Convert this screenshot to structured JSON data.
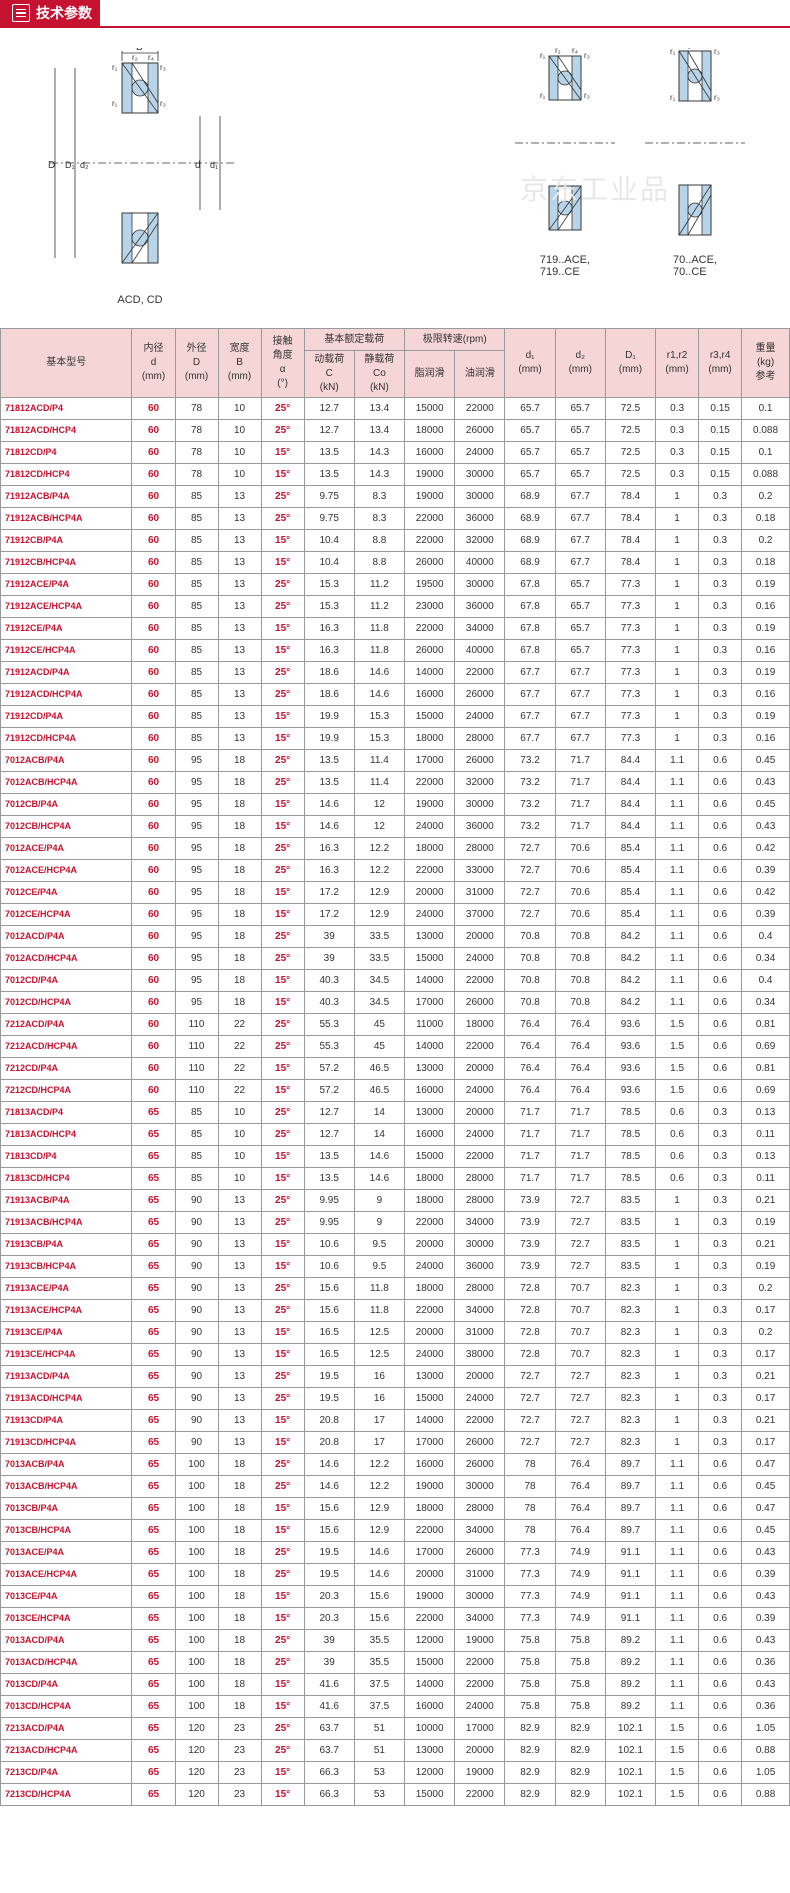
{
  "header": {
    "title": "技术参数"
  },
  "watermark": "京东工业品",
  "diagram_labels": {
    "left": "ACD, CD",
    "mid": "719..ACE,\n719..CE",
    "right": "70..ACE,\n70..CE"
  },
  "diagram_dims": {
    "B": "B",
    "D": "D",
    "D1": "D₁",
    "d": "d",
    "d1": "d₁",
    "d2": "d₂",
    "r1": "r₁",
    "r2": "r₂",
    "r3": "r₃",
    "r4": "r₄"
  },
  "colors": {
    "bearing_fill": "#b8d4e8",
    "bearing_stroke": "#2a5a8a",
    "header_red": "#c41230",
    "th_bg": "#f5d5d5"
  },
  "columns": {
    "model": "基本型号",
    "d": "内径\nd\n(mm)",
    "D": "外径\nD\n(mm)",
    "B": "宽度\nB\n(mm)",
    "angle": "接触\n角度\nα\n(°)",
    "load": "基本额定载荷",
    "load_c": "动载荷\nC\n(kN)",
    "load_co": "静载荷\nCo\n(kN)",
    "speed": "极限转速(rpm)",
    "speed_g": "脂润滑",
    "speed_o": "油润滑",
    "d1": "d₁\n(mm)",
    "d2": "d₂\n(mm)",
    "D1": "D₁\n(mm)",
    "r12": "r1,r2\n(mm)",
    "r34": "r3,r4\n(mm)",
    "w": "重量\n(kg)\n参考"
  },
  "rows": [
    [
      "71812ACD/P4",
      "60",
      "78",
      "10",
      "25°",
      "12.7",
      "13.4",
      "15000",
      "22000",
      "65.7",
      "65.7",
      "72.5",
      "0.3",
      "0.15",
      "0.1"
    ],
    [
      "71812ACD/HCP4",
      "60",
      "78",
      "10",
      "25°",
      "12.7",
      "13.4",
      "18000",
      "26000",
      "65.7",
      "65.7",
      "72.5",
      "0.3",
      "0.15",
      "0.088"
    ],
    [
      "71812CD/P4",
      "60",
      "78",
      "10",
      "15°",
      "13.5",
      "14.3",
      "16000",
      "24000",
      "65.7",
      "65.7",
      "72.5",
      "0.3",
      "0.15",
      "0.1"
    ],
    [
      "71812CD/HCP4",
      "60",
      "78",
      "10",
      "15°",
      "13.5",
      "14.3",
      "19000",
      "30000",
      "65.7",
      "65.7",
      "72.5",
      "0.3",
      "0.15",
      "0.088"
    ],
    [
      "71912ACB/P4A",
      "60",
      "85",
      "13",
      "25°",
      "9.75",
      "8.3",
      "19000",
      "30000",
      "68.9",
      "67.7",
      "78.4",
      "1",
      "0.3",
      "0.2"
    ],
    [
      "71912ACB/HCP4A",
      "60",
      "85",
      "13",
      "25°",
      "9.75",
      "8.3",
      "22000",
      "36000",
      "68.9",
      "67.7",
      "78.4",
      "1",
      "0.3",
      "0.18"
    ],
    [
      "71912CB/P4A",
      "60",
      "85",
      "13",
      "15°",
      "10.4",
      "8.8",
      "22000",
      "32000",
      "68.9",
      "67.7",
      "78.4",
      "1",
      "0.3",
      "0.2"
    ],
    [
      "71912CB/HCP4A",
      "60",
      "85",
      "13",
      "15°",
      "10.4",
      "8.8",
      "26000",
      "40000",
      "68.9",
      "67.7",
      "78.4",
      "1",
      "0.3",
      "0.18"
    ],
    [
      "71912ACE/P4A",
      "60",
      "85",
      "13",
      "25°",
      "15.3",
      "11.2",
      "19500",
      "30000",
      "67.8",
      "65.7",
      "77.3",
      "1",
      "0.3",
      "0.19"
    ],
    [
      "71912ACE/HCP4A",
      "60",
      "85",
      "13",
      "25°",
      "15.3",
      "11.2",
      "23000",
      "36000",
      "67.8",
      "65.7",
      "77.3",
      "1",
      "0.3",
      "0.16"
    ],
    [
      "71912CE/P4A",
      "60",
      "85",
      "13",
      "15°",
      "16.3",
      "11.8",
      "22000",
      "34000",
      "67.8",
      "65.7",
      "77.3",
      "1",
      "0.3",
      "0.19"
    ],
    [
      "71912CE/HCP4A",
      "60",
      "85",
      "13",
      "15°",
      "16.3",
      "11.8",
      "26000",
      "40000",
      "67.8",
      "65.7",
      "77.3",
      "1",
      "0.3",
      "0.16"
    ],
    [
      "71912ACD/P4A",
      "60",
      "85",
      "13",
      "25°",
      "18.6",
      "14.6",
      "14000",
      "22000",
      "67.7",
      "67.7",
      "77.3",
      "1",
      "0.3",
      "0.19"
    ],
    [
      "71912ACD/HCP4A",
      "60",
      "85",
      "13",
      "25°",
      "18.6",
      "14.6",
      "16000",
      "26000",
      "67.7",
      "67.7",
      "77.3",
      "1",
      "0.3",
      "0.16"
    ],
    [
      "71912CD/P4A",
      "60",
      "85",
      "13",
      "15°",
      "19.9",
      "15.3",
      "15000",
      "24000",
      "67.7",
      "67.7",
      "77.3",
      "1",
      "0.3",
      "0.19"
    ],
    [
      "71912CD/HCP4A",
      "60",
      "85",
      "13",
      "15°",
      "19.9",
      "15.3",
      "18000",
      "28000",
      "67.7",
      "67.7",
      "77.3",
      "1",
      "0.3",
      "0.16"
    ],
    [
      "7012ACB/P4A",
      "60",
      "95",
      "18",
      "25°",
      "13.5",
      "11.4",
      "17000",
      "26000",
      "73.2",
      "71.7",
      "84.4",
      "1.1",
      "0.6",
      "0.45"
    ],
    [
      "7012ACB/HCP4A",
      "60",
      "95",
      "18",
      "25°",
      "13.5",
      "11.4",
      "22000",
      "32000",
      "73.2",
      "71.7",
      "84.4",
      "1.1",
      "0.6",
      "0.43"
    ],
    [
      "7012CB/P4A",
      "60",
      "95",
      "18",
      "15°",
      "14.6",
      "12",
      "19000",
      "30000",
      "73.2",
      "71.7",
      "84.4",
      "1.1",
      "0.6",
      "0.45"
    ],
    [
      "7012CB/HCP4A",
      "60",
      "95",
      "18",
      "15°",
      "14.6",
      "12",
      "24000",
      "36000",
      "73.2",
      "71.7",
      "84.4",
      "1.1",
      "0.6",
      "0.43"
    ],
    [
      "7012ACE/P4A",
      "60",
      "95",
      "18",
      "25°",
      "16.3",
      "12.2",
      "18000",
      "28000",
      "72.7",
      "70.6",
      "85.4",
      "1.1",
      "0.6",
      "0.42"
    ],
    [
      "7012ACE/HCP4A",
      "60",
      "95",
      "18",
      "25°",
      "16.3",
      "12.2",
      "22000",
      "33000",
      "72.7",
      "70.6",
      "85.4",
      "1.1",
      "0.6",
      "0.39"
    ],
    [
      "7012CE/P4A",
      "60",
      "95",
      "18",
      "15°",
      "17.2",
      "12.9",
      "20000",
      "31000",
      "72.7",
      "70.6",
      "85.4",
      "1.1",
      "0.6",
      "0.42"
    ],
    [
      "7012CE/HCP4A",
      "60",
      "95",
      "18",
      "15°",
      "17.2",
      "12.9",
      "24000",
      "37000",
      "72.7",
      "70.6",
      "85.4",
      "1.1",
      "0.6",
      "0.39"
    ],
    [
      "7012ACD/P4A",
      "60",
      "95",
      "18",
      "25°",
      "39",
      "33.5",
      "13000",
      "20000",
      "70.8",
      "70.8",
      "84.2",
      "1.1",
      "0.6",
      "0.4"
    ],
    [
      "7012ACD/HCP4A",
      "60",
      "95",
      "18",
      "25°",
      "39",
      "33.5",
      "15000",
      "24000",
      "70.8",
      "70.8",
      "84.2",
      "1.1",
      "0.6",
      "0.34"
    ],
    [
      "7012CD/P4A",
      "60",
      "95",
      "18",
      "15°",
      "40.3",
      "34.5",
      "14000",
      "22000",
      "70.8",
      "70.8",
      "84.2",
      "1.1",
      "0.6",
      "0.4"
    ],
    [
      "7012CD/HCP4A",
      "60",
      "95",
      "18",
      "15°",
      "40.3",
      "34.5",
      "17000",
      "26000",
      "70.8",
      "70.8",
      "84.2",
      "1.1",
      "0.6",
      "0.34"
    ],
    [
      "7212ACD/P4A",
      "60",
      "110",
      "22",
      "25°",
      "55.3",
      "45",
      "11000",
      "18000",
      "76.4",
      "76.4",
      "93.6",
      "1.5",
      "0.6",
      "0.81"
    ],
    [
      "7212ACD/HCP4A",
      "60",
      "110",
      "22",
      "25°",
      "55.3",
      "45",
      "14000",
      "22000",
      "76.4",
      "76.4",
      "93.6",
      "1.5",
      "0.6",
      "0.69"
    ],
    [
      "7212CD/P4A",
      "60",
      "110",
      "22",
      "15°",
      "57.2",
      "46.5",
      "13000",
      "20000",
      "76.4",
      "76.4",
      "93.6",
      "1.5",
      "0.6",
      "0.81"
    ],
    [
      "7212CD/HCP4A",
      "60",
      "110",
      "22",
      "15°",
      "57.2",
      "46.5",
      "16000",
      "24000",
      "76.4",
      "76.4",
      "93.6",
      "1.5",
      "0.6",
      "0.69"
    ],
    [
      "71813ACD/P4",
      "65",
      "85",
      "10",
      "25°",
      "12.7",
      "14",
      "13000",
      "20000",
      "71.7",
      "71.7",
      "78.5",
      "0.6",
      "0.3",
      "0.13"
    ],
    [
      "71813ACD/HCP4",
      "65",
      "85",
      "10",
      "25°",
      "12.7",
      "14",
      "16000",
      "24000",
      "71.7",
      "71.7",
      "78.5",
      "0.6",
      "0.3",
      "0.11"
    ],
    [
      "71813CD/P4",
      "65",
      "85",
      "10",
      "15°",
      "13.5",
      "14.6",
      "15000",
      "22000",
      "71.7",
      "71.7",
      "78.5",
      "0.6",
      "0.3",
      "0.13"
    ],
    [
      "71813CD/HCP4",
      "65",
      "85",
      "10",
      "15°",
      "13.5",
      "14.6",
      "18000",
      "28000",
      "71.7",
      "71.7",
      "78.5",
      "0.6",
      "0.3",
      "0.11"
    ],
    [
      "71913ACB/P4A",
      "65",
      "90",
      "13",
      "25°",
      "9.95",
      "9",
      "18000",
      "28000",
      "73.9",
      "72.7",
      "83.5",
      "1",
      "0.3",
      "0.21"
    ],
    [
      "71913ACB/HCP4A",
      "65",
      "90",
      "13",
      "25°",
      "9.95",
      "9",
      "22000",
      "34000",
      "73.9",
      "72.7",
      "83.5",
      "1",
      "0.3",
      "0.19"
    ],
    [
      "71913CB/P4A",
      "65",
      "90",
      "13",
      "15°",
      "10.6",
      "9.5",
      "20000",
      "30000",
      "73.9",
      "72.7",
      "83.5",
      "1",
      "0.3",
      "0.21"
    ],
    [
      "71913CB/HCP4A",
      "65",
      "90",
      "13",
      "15°",
      "10.6",
      "9.5",
      "24000",
      "36000",
      "73.9",
      "72.7",
      "83.5",
      "1",
      "0.3",
      "0.19"
    ],
    [
      "71913ACE/P4A",
      "65",
      "90",
      "13",
      "25°",
      "15.6",
      "11.8",
      "18000",
      "28000",
      "72.8",
      "70.7",
      "82.3",
      "1",
      "0.3",
      "0.2"
    ],
    [
      "71913ACE/HCP4A",
      "65",
      "90",
      "13",
      "25°",
      "15.6",
      "11.8",
      "22000",
      "34000",
      "72.8",
      "70.7",
      "82.3",
      "1",
      "0.3",
      "0.17"
    ],
    [
      "71913CE/P4A",
      "65",
      "90",
      "13",
      "15°",
      "16.5",
      "12.5",
      "20000",
      "31000",
      "72.8",
      "70.7",
      "82.3",
      "1",
      "0.3",
      "0.2"
    ],
    [
      "71913CE/HCP4A",
      "65",
      "90",
      "13",
      "15°",
      "16.5",
      "12.5",
      "24000",
      "38000",
      "72.8",
      "70.7",
      "82.3",
      "1",
      "0.3",
      "0.17"
    ],
    [
      "71913ACD/P4A",
      "65",
      "90",
      "13",
      "25°",
      "19.5",
      "16",
      "13000",
      "20000",
      "72.7",
      "72.7",
      "82.3",
      "1",
      "0.3",
      "0.21"
    ],
    [
      "71913ACD/HCP4A",
      "65",
      "90",
      "13",
      "25°",
      "19.5",
      "16",
      "15000",
      "24000",
      "72.7",
      "72.7",
      "82.3",
      "1",
      "0.3",
      "0.17"
    ],
    [
      "71913CD/P4A",
      "65",
      "90",
      "13",
      "15°",
      "20.8",
      "17",
      "14000",
      "22000",
      "72.7",
      "72.7",
      "82.3",
      "1",
      "0.3",
      "0.21"
    ],
    [
      "71913CD/HCP4A",
      "65",
      "90",
      "13",
      "15°",
      "20.8",
      "17",
      "17000",
      "26000",
      "72.7",
      "72.7",
      "82.3",
      "1",
      "0.3",
      "0.17"
    ],
    [
      "7013ACB/P4A",
      "65",
      "100",
      "18",
      "25°",
      "14.6",
      "12.2",
      "16000",
      "26000",
      "78",
      "76.4",
      "89.7",
      "1.1",
      "0.6",
      "0.47"
    ],
    [
      "7013ACB/HCP4A",
      "65",
      "100",
      "18",
      "25°",
      "14.6",
      "12.2",
      "19000",
      "30000",
      "78",
      "76.4",
      "89.7",
      "1.1",
      "0.6",
      "0.45"
    ],
    [
      "7013CB/P4A",
      "65",
      "100",
      "18",
      "15°",
      "15.6",
      "12.9",
      "18000",
      "28000",
      "78",
      "76.4",
      "89.7",
      "1.1",
      "0.6",
      "0.47"
    ],
    [
      "7013CB/HCP4A",
      "65",
      "100",
      "18",
      "15°",
      "15.6",
      "12.9",
      "22000",
      "34000",
      "78",
      "76.4",
      "89.7",
      "1.1",
      "0.6",
      "0.45"
    ],
    [
      "7013ACE/P4A",
      "65",
      "100",
      "18",
      "25°",
      "19.5",
      "14.6",
      "17000",
      "26000",
      "77.3",
      "74.9",
      "91.1",
      "1.1",
      "0.6",
      "0.43"
    ],
    [
      "7013ACE/HCP4A",
      "65",
      "100",
      "18",
      "25°",
      "19.5",
      "14.6",
      "20000",
      "31000",
      "77.3",
      "74.9",
      "91.1",
      "1.1",
      "0.6",
      "0.39"
    ],
    [
      "7013CE/P4A",
      "65",
      "100",
      "18",
      "15°",
      "20.3",
      "15.6",
      "19000",
      "30000",
      "77.3",
      "74.9",
      "91.1",
      "1.1",
      "0.6",
      "0.43"
    ],
    [
      "7013CE/HCP4A",
      "65",
      "100",
      "18",
      "15°",
      "20.3",
      "15.6",
      "22000",
      "34000",
      "77.3",
      "74.9",
      "91.1",
      "1.1",
      "0.6",
      "0.39"
    ],
    [
      "7013ACD/P4A",
      "65",
      "100",
      "18",
      "25°",
      "39",
      "35.5",
      "12000",
      "19000",
      "75.8",
      "75.8",
      "89.2",
      "1.1",
      "0.6",
      "0.43"
    ],
    [
      "7013ACD/HCP4A",
      "65",
      "100",
      "18",
      "25°",
      "39",
      "35.5",
      "15000",
      "22000",
      "75.8",
      "75.8",
      "89.2",
      "1.1",
      "0.6",
      "0.36"
    ],
    [
      "7013CD/P4A",
      "65",
      "100",
      "18",
      "15°",
      "41.6",
      "37.5",
      "14000",
      "22000",
      "75.8",
      "75.8",
      "89.2",
      "1.1",
      "0.6",
      "0.43"
    ],
    [
      "7013CD/HCP4A",
      "65",
      "100",
      "18",
      "15°",
      "41.6",
      "37.5",
      "16000",
      "24000",
      "75.8",
      "75.8",
      "89.2",
      "1.1",
      "0.6",
      "0.36"
    ],
    [
      "7213ACD/P4A",
      "65",
      "120",
      "23",
      "25°",
      "63.7",
      "51",
      "10000",
      "17000",
      "82.9",
      "82.9",
      "102.1",
      "1.5",
      "0.6",
      "1.05"
    ],
    [
      "7213ACD/HCP4A",
      "65",
      "120",
      "23",
      "25°",
      "63.7",
      "51",
      "13000",
      "20000",
      "82.9",
      "82.9",
      "102.1",
      "1.5",
      "0.6",
      "0.88"
    ],
    [
      "7213CD/P4A",
      "65",
      "120",
      "23",
      "15°",
      "66.3",
      "53",
      "12000",
      "19000",
      "82.9",
      "82.9",
      "102.1",
      "1.5",
      "0.6",
      "1.05"
    ],
    [
      "7213CD/HCP4A",
      "65",
      "120",
      "23",
      "15°",
      "66.3",
      "53",
      "15000",
      "22000",
      "82.9",
      "82.9",
      "102.1",
      "1.5",
      "0.6",
      "0.88"
    ]
  ]
}
